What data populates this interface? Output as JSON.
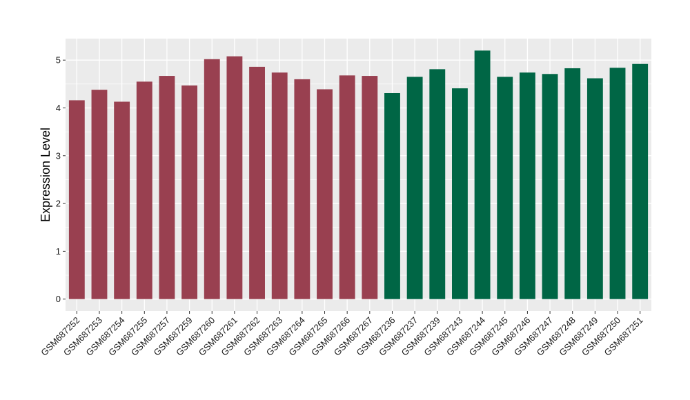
{
  "chart_data": {
    "type": "bar",
    "title": "",
    "xlabel": "",
    "ylabel": "Expression Level",
    "ylim": [
      -0.25,
      5.45
    ],
    "yticks": [
      0,
      1,
      2,
      3,
      4,
      5
    ],
    "grid": true,
    "legend": "none",
    "background": "#EBEBEB",
    "categories": [
      "GSM687252",
      "GSM687253",
      "GSM687254",
      "GSM687255",
      "GSM687257",
      "GSM687259",
      "GSM687260",
      "GSM687261",
      "GSM687262",
      "GSM687263",
      "GSM687264",
      "GSM687265",
      "GSM687266",
      "GSM687267",
      "GSM687236",
      "GSM687237",
      "GSM687239",
      "GSM687243",
      "GSM687244",
      "GSM687245",
      "GSM687246",
      "GSM687247",
      "GSM687248",
      "GSM687249",
      "GSM687250",
      "GSM687251"
    ],
    "values": [
      4.16,
      4.38,
      4.13,
      4.55,
      4.67,
      4.47,
      5.02,
      5.08,
      4.86,
      4.74,
      4.6,
      4.39,
      4.68,
      4.67,
      4.31,
      4.65,
      4.81,
      4.41,
      5.2,
      4.65,
      4.74,
      4.71,
      4.83,
      4.62,
      4.84,
      4.92
    ],
    "groups": [
      {
        "color": "#994050",
        "count": 14
      },
      {
        "color": "#006645",
        "count": 12
      }
    ]
  }
}
